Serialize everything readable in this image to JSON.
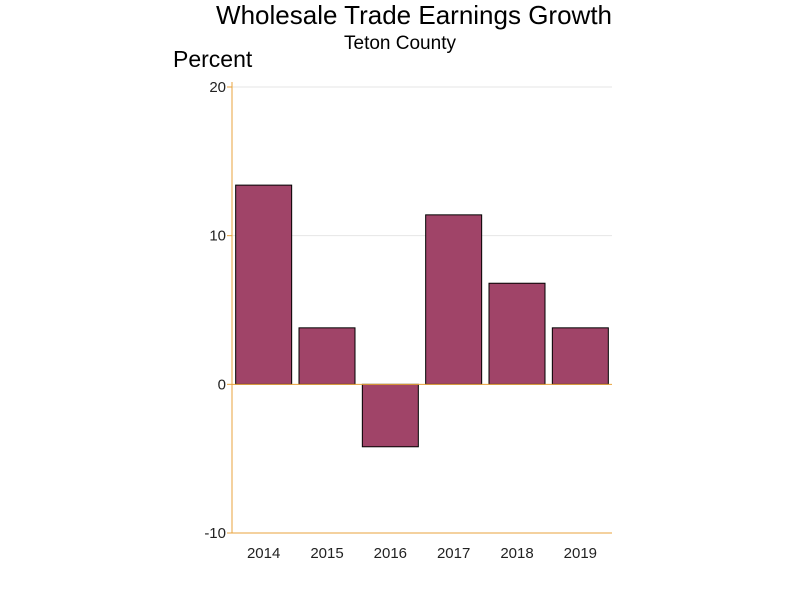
{
  "title": "Wholesale Trade Earnings Growth",
  "subtitle": "Teton County",
  "chart_data": {
    "type": "bar",
    "title": "Wholesale Trade Earnings Growth",
    "subtitle": "Teton County",
    "xlabel": "",
    "ylabel": "Percent",
    "categories": [
      "2014",
      "2015",
      "2016",
      "2017",
      "2018",
      "2019"
    ],
    "values": [
      13.4,
      3.8,
      -4.2,
      11.4,
      6.8,
      3.8
    ],
    "ylim": [
      -10,
      20
    ],
    "yticks": [
      -10,
      0,
      10,
      20
    ],
    "grid": true,
    "legend": "none"
  },
  "colors": {
    "bar_fill": "#A04468",
    "bar_stroke": "#000000",
    "axis": "#E8A33C",
    "gridline": "#E6E6E6",
    "zero_line": "#E8A33C"
  }
}
